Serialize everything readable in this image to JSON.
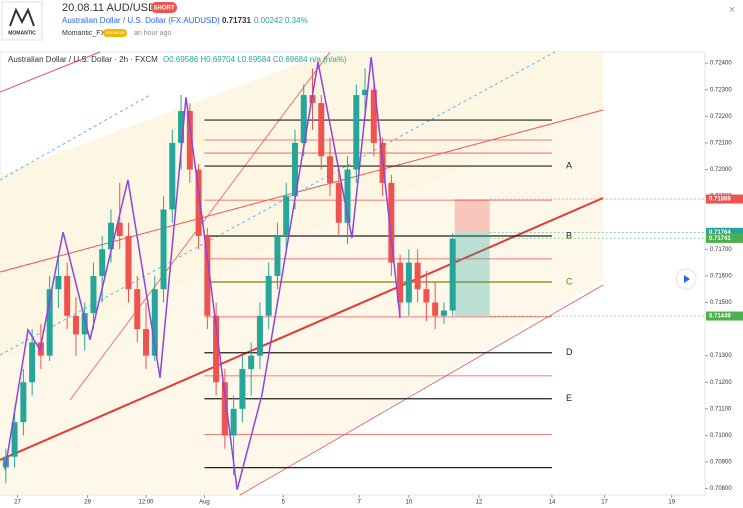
{
  "header": {
    "title": "20.08.11 AUD/USD",
    "badge": "SHORT",
    "symbol": "Australian Dollar / U.S. Dollar (FX:AUDUSD)",
    "price": "0.71731",
    "change": "0.00242",
    "change_pct": "0.34%",
    "author": "Momantic_FX",
    "author_badge": "PREMIUM",
    "time": "an hour ago",
    "logo": "MOMANTIC"
  },
  "chart_data": {
    "type": "candlestick",
    "legend_title": "Australian Dollar / U.S. Dollar · 2h · FXCM",
    "legend_ohlc": "O0.69586 H0.69704 L0.69584 C0.69684 n/a (n/a%)",
    "up_color": "#26a69a",
    "down_color": "#ef5350",
    "x": [
      2,
      5,
      8,
      11,
      14,
      17,
      20,
      23,
      26,
      29,
      32,
      35,
      38,
      41,
      44,
      47,
      50,
      53,
      56,
      59,
      62,
      65,
      68,
      71,
      74,
      77,
      80,
      83,
      86,
      89,
      92,
      95,
      98,
      101,
      104,
      107,
      110,
      113,
      116,
      119,
      122,
      125,
      128,
      131,
      134,
      137,
      140,
      143,
      146,
      149,
      152,
      155
    ],
    "open": [
      0.7088,
      0.7092,
      0.7105,
      0.712,
      0.7135,
      0.713,
      0.7155,
      0.716,
      0.7145,
      0.7138,
      0.7146,
      0.716,
      0.717,
      0.718,
      0.7175,
      0.7155,
      0.714,
      0.713,
      0.7155,
      0.7185,
      0.721,
      0.7222,
      0.72,
      0.7175,
      0.7145,
      0.712,
      0.71,
      0.711,
      0.7125,
      0.713,
      0.7145,
      0.716,
      0.7175,
      0.719,
      0.721,
      0.7228,
      0.7225,
      0.7205,
      0.7195,
      0.718,
      0.72,
      0.7228,
      0.723,
      0.721,
      0.7195,
      0.7165,
      0.715,
      0.7165,
      0.7155,
      0.715,
      0.7145,
      0.7147
    ],
    "high": [
      0.7095,
      0.711,
      0.7125,
      0.714,
      0.7142,
      0.716,
      0.7168,
      0.7165,
      0.7152,
      0.715,
      0.7165,
      0.7175,
      0.7185,
      0.7195,
      0.718,
      0.716,
      0.715,
      0.716,
      0.719,
      0.7215,
      0.7228,
      0.7225,
      0.7202,
      0.7178,
      0.715,
      0.7125,
      0.7115,
      0.713,
      0.7135,
      0.715,
      0.7165,
      0.718,
      0.7195,
      0.7215,
      0.7232,
      0.7238,
      0.7228,
      0.7212,
      0.72,
      0.7205,
      0.7232,
      0.7238,
      0.7232,
      0.7212,
      0.7198,
      0.7168,
      0.717,
      0.717,
      0.7162,
      0.7158,
      0.715,
      0.7176
    ],
    "low": [
      0.7082,
      0.7088,
      0.71,
      0.7115,
      0.7125,
      0.7128,
      0.7148,
      0.714,
      0.713,
      0.7132,
      0.714,
      0.715,
      0.7165,
      0.717,
      0.715,
      0.7135,
      0.7125,
      0.7128,
      0.715,
      0.718,
      0.72,
      0.7195,
      0.717,
      0.714,
      0.7115,
      0.7095,
      0.7085,
      0.7105,
      0.7115,
      0.7125,
      0.714,
      0.7155,
      0.717,
      0.7185,
      0.7205,
      0.7215,
      0.72,
      0.719,
      0.7175,
      0.7172,
      0.7195,
      0.722,
      0.7205,
      0.719,
      0.716,
      0.7145,
      0.7145,
      0.715,
      0.7143,
      0.714,
      0.7142,
      0.7145
    ],
    "close": [
      0.7092,
      0.7105,
      0.712,
      0.7135,
      0.713,
      0.7155,
      0.716,
      0.7145,
      0.7138,
      0.7146,
      0.716,
      0.717,
      0.718,
      0.7175,
      0.7155,
      0.714,
      0.713,
      0.7155,
      0.7185,
      0.721,
      0.7222,
      0.72,
      0.7175,
      0.7145,
      0.712,
      0.71,
      0.711,
      0.7125,
      0.713,
      0.7145,
      0.716,
      0.7175,
      0.719,
      0.721,
      0.7228,
      0.7225,
      0.7205,
      0.7195,
      0.718,
      0.72,
      0.7228,
      0.723,
      0.721,
      0.7195,
      0.7165,
      0.715,
      0.7165,
      0.7155,
      0.715,
      0.7145,
      0.7147,
      0.7174
    ],
    "zigzag": {
      "color": "#8e44dd",
      "x": [
        1.7,
        9.6,
        13.7,
        21.6,
        30.8,
        43.8,
        54.8,
        63.7,
        70.2,
        81.2,
        89.7,
        108.9,
        120.5,
        127.1,
        137
      ],
      "values": [
        0.70871,
        0.71397,
        0.71322,
        0.71765,
        0.7136,
        0.71961,
        0.71217,
        0.72272,
        0.71735,
        0.70796,
        0.71153,
        0.72404,
        0.71743,
        0.72423,
        0.71442
      ]
    },
    "levels": [
      {
        "value": 0.72186
      },
      {
        "value": 0.72013,
        "label": "A"
      },
      {
        "value": 0.7175,
        "label": "B"
      },
      {
        "value": 0.71577,
        "label": "C"
      },
      {
        "value": 0.71311,
        "label": "D"
      },
      {
        "value": 0.71138,
        "label": "E"
      },
      {
        "value": 0.70879
      }
    ],
    "sub_levels": [
      0.72111,
      0.72062,
      0.71885,
      0.71664,
      0.71446,
      0.71224,
      0.71003
    ],
    "position": {
      "stop": 0.71889,
      "entry": 0.71764,
      "target": 0.71449
    },
    "price_labels": [
      {
        "value": 0.71889,
        "color": "#ef5350"
      },
      {
        "value": 0.71764,
        "color": "#26a69a"
      },
      {
        "value": 0.71741,
        "color": "#4caf50"
      },
      {
        "value": 0.71449,
        "color": "#4caf50"
      }
    ],
    "xlim": [
      0,
      241.4
    ],
    "ylim": [
      0.70776,
      0.72442
    ],
    "xticks": [
      {
        "value": 6,
        "label": "27"
      },
      {
        "value": 30,
        "label": "29"
      },
      {
        "value": 50,
        "label": "12:00"
      },
      {
        "value": 70,
        "label": "Aug"
      },
      {
        "value": 97,
        "label": "5"
      },
      {
        "value": 123,
        "label": "7"
      },
      {
        "value": 140,
        "label": "10"
      },
      {
        "value": 164,
        "label": "12"
      },
      {
        "value": 189,
        "label": "14"
      },
      {
        "value": 207,
        "label": "17"
      },
      {
        "value": 230,
        "label": "19"
      }
    ],
    "yticks": [
      {
        "value": 0.724,
        "label": "0.72400"
      },
      {
        "value": 0.723,
        "label": "0.72300"
      },
      {
        "value": 0.722,
        "label": "0.72200"
      },
      {
        "value": 0.721,
        "label": "0.72100"
      },
      {
        "value": 0.72,
        "label": "0.72000"
      },
      {
        "value": 0.719,
        "label": "0.71900"
      },
      {
        "value": 0.717,
        "label": "0.71700"
      },
      {
        "value": 0.716,
        "label": "0.71600"
      },
      {
        "value": 0.715,
        "label": "0.71500"
      },
      {
        "value": 0.713,
        "label": "0.71300"
      },
      {
        "value": 0.712,
        "label": "0.71200"
      },
      {
        "value": 0.711,
        "label": "0.71100"
      },
      {
        "value": 0.71,
        "label": "0.71000"
      },
      {
        "value": 0.709,
        "label": "0.70900"
      },
      {
        "value": 0.708,
        "label": "0.70800"
      }
    ]
  }
}
